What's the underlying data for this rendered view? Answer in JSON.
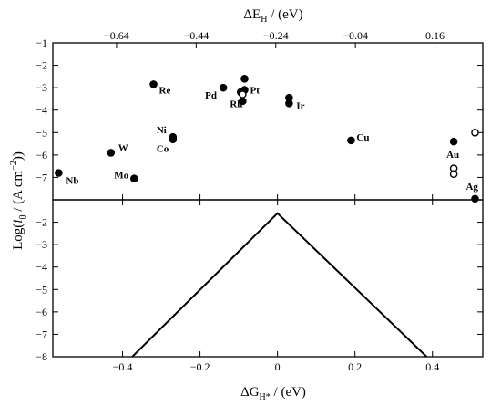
{
  "chart_data": [
    {
      "type": "scatter",
      "panel": "top",
      "xlabel_top": {
        "main": "ΔE",
        "sub": "H",
        "rest": " / (eV)"
      },
      "xlim_top": [
        -0.8,
        0.28
      ],
      "xticks_top": [
        -0.64,
        -0.44,
        -0.24,
        -0.04,
        0.16
      ],
      "xlim": [
        -0.58,
        0.53
      ],
      "ylim": [
        -8,
        -1
      ],
      "yticks": [
        -7,
        -6,
        -5,
        -4,
        -3,
        -2,
        -1
      ],
      "points": [
        {
          "x": -0.565,
          "y": -6.8,
          "label": "Nb",
          "filled": true
        },
        {
          "x": -0.43,
          "y": -5.9,
          "label": "W",
          "filled": true
        },
        {
          "x": -0.37,
          "y": -7.05,
          "label": "Mo",
          "filled": true
        },
        {
          "x": -0.32,
          "y": -2.85,
          "label": "Re",
          "filled": true
        },
        {
          "x": -0.27,
          "y": -5.2,
          "label": "Ni",
          "filled": true
        },
        {
          "x": -0.27,
          "y": -5.3,
          "label": "Co",
          "filled": true
        },
        {
          "x": -0.14,
          "y": -3.0,
          "label": "Pd",
          "filled": true
        },
        {
          "x": -0.085,
          "y": -2.6,
          "label": "",
          "filled": true
        },
        {
          "x": -0.095,
          "y": -3.2,
          "label": "",
          "filled": true
        },
        {
          "x": -0.085,
          "y": -3.1,
          "label": "Pt",
          "filled": true
        },
        {
          "x": -0.09,
          "y": -3.6,
          "label": "",
          "filled": true
        },
        {
          "x": -0.09,
          "y": -3.3,
          "label": "Rh",
          "filled": false
        },
        {
          "x": 0.03,
          "y": -3.45,
          "label": "",
          "filled": true
        },
        {
          "x": 0.03,
          "y": -3.7,
          "label": "Ir",
          "filled": true
        },
        {
          "x": 0.19,
          "y": -5.35,
          "label": "Cu",
          "filled": true
        },
        {
          "x": 0.455,
          "y": -5.4,
          "label": "Au",
          "filled": true
        },
        {
          "x": 0.455,
          "y": -6.6,
          "label": "",
          "filled": false
        },
        {
          "x": 0.455,
          "y": -6.85,
          "label": "",
          "filled": false
        },
        {
          "x": 0.51,
          "y": -5.0,
          "label": "",
          "filled": false
        },
        {
          "x": 0.51,
          "y": -7.95,
          "label": "Ag",
          "filled": true
        }
      ]
    },
    {
      "type": "line",
      "panel": "bottom",
      "xlabel": {
        "main": "ΔG",
        "sub": "H*",
        "rest": " / (eV)"
      },
      "xlim": [
        -0.58,
        0.53
      ],
      "xticks": [
        -0.4,
        -0.2,
        0,
        0.2,
        0.4
      ],
      "ylim": [
        -8,
        -1
      ],
      "yticks": [
        -8,
        -7,
        -6,
        -5,
        -4,
        -3,
        -2
      ],
      "x": [
        -0.375,
        0.0,
        0.385
      ],
      "y": [
        -8.0,
        -1.6,
        -8.0
      ]
    }
  ],
  "ylabel": {
    "pre": "Log(",
    "i": "i",
    "sub": "0",
    "mid": " / (A cm",
    "sup": "−2",
    "post": "))"
  }
}
